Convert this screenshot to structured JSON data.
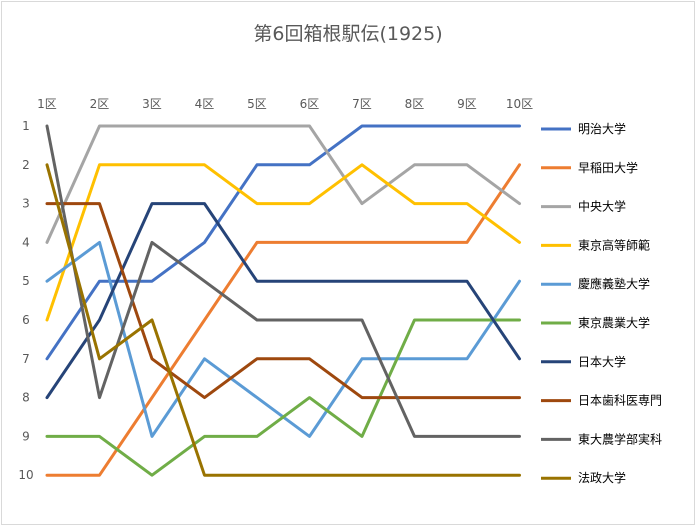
{
  "chart_data": {
    "type": "line",
    "title": "第6回箱根駅伝(1925)",
    "categories": [
      "1区",
      "2区",
      "3区",
      "4区",
      "5区",
      "6区",
      "7区",
      "8区",
      "9区",
      "10区"
    ],
    "y_ticks": [
      1,
      2,
      3,
      4,
      5,
      6,
      7,
      8,
      9,
      10
    ],
    "ylim": [
      1,
      10
    ],
    "y_reversed": true,
    "x_axis_position": "top",
    "grid": false,
    "legend_position": "right",
    "series": [
      {
        "name": "明治大学",
        "color": "#4472C4",
        "values": [
          7,
          5,
          5,
          4,
          2,
          2,
          1,
          1,
          1,
          1
        ]
      },
      {
        "name": "早稲田大学",
        "color": "#ED7D31",
        "values": [
          10,
          10,
          8,
          6,
          4,
          4,
          4,
          4,
          4,
          2
        ]
      },
      {
        "name": "中央大学",
        "color": "#A5A5A5",
        "values": [
          4,
          1,
          1,
          1,
          1,
          1,
          3,
          2,
          2,
          3
        ]
      },
      {
        "name": "東京高等師範",
        "color": "#FFC000",
        "values": [
          6,
          2,
          2,
          2,
          3,
          3,
          2,
          3,
          3,
          4
        ]
      },
      {
        "name": "慶應義塾大学",
        "color": "#5B9BD5",
        "values": [
          5,
          4,
          9,
          7,
          8,
          9,
          7,
          7,
          7,
          5
        ]
      },
      {
        "name": "東京農業大学",
        "color": "#70AD47",
        "values": [
          9,
          9,
          10,
          9,
          9,
          8,
          9,
          6,
          6,
          6
        ]
      },
      {
        "name": "日本大学",
        "color": "#264478",
        "values": [
          8,
          6,
          3,
          3,
          5,
          5,
          5,
          5,
          5,
          7
        ]
      },
      {
        "name": "日本歯科医専門",
        "color": "#9E480E",
        "values": [
          3,
          3,
          7,
          8,
          7,
          7,
          8,
          8,
          8,
          8
        ]
      },
      {
        "name": "東大農学部実科",
        "color": "#636363",
        "values": [
          1,
          8,
          4,
          5,
          6,
          6,
          6,
          9,
          9,
          9
        ]
      },
      {
        "name": "法政大学",
        "color": "#997300",
        "values": [
          2,
          7,
          6,
          10,
          10,
          10,
          10,
          10,
          10,
          10
        ]
      }
    ]
  }
}
